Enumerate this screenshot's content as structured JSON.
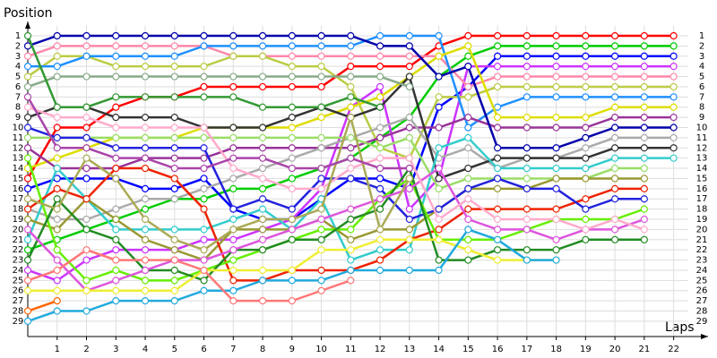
{
  "chart_data": {
    "type": "line",
    "y_label": "Position",
    "x_label": "Laps",
    "x": [
      0,
      1,
      2,
      3,
      4,
      5,
      6,
      7,
      8,
      9,
      10,
      11,
      12,
      13,
      14,
      15,
      16,
      17,
      18,
      19,
      20,
      21,
      22
    ],
    "xlim": [
      0,
      22.5
    ],
    "xticks": [
      1,
      2,
      3,
      4,
      5,
      6,
      7,
      8,
      9,
      10,
      11,
      12,
      13,
      14,
      15,
      16,
      17,
      18,
      19,
      20,
      21,
      22
    ],
    "ylim": [
      30.5,
      0
    ],
    "yticks": [
      1,
      2,
      3,
      4,
      5,
      6,
      7,
      8,
      9,
      10,
      11,
      12,
      13,
      14,
      15,
      16,
      17,
      18,
      19,
      20,
      21,
      22,
      23,
      24,
      25,
      26,
      27,
      28,
      29
    ],
    "grid": true,
    "series": [
      {
        "color": "#ff0000",
        "values": [
          15,
          10,
          10,
          8,
          7,
          7,
          6,
          6,
          6,
          6,
          6,
          4,
          4,
          4,
          2,
          1,
          1,
          1,
          1,
          1,
          1,
          1,
          1
        ]
      },
      {
        "color": "#00cc00",
        "values": [
          22,
          21,
          20,
          19,
          18,
          17,
          17,
          16,
          16,
          15,
          14,
          13,
          11,
          9,
          5,
          3,
          2,
          2,
          2,
          2,
          2,
          2,
          2
        ]
      },
      {
        "color": "#0000ff",
        "values": [
          16,
          15,
          15,
          15,
          16,
          16,
          15,
          18,
          19,
          19,
          17,
          15,
          15,
          16,
          8,
          6,
          3,
          3,
          3,
          3,
          3,
          3,
          3
        ]
      },
      {
        "color": "#cc33ff",
        "values": [
          24,
          25,
          23,
          22,
          22,
          22,
          21,
          21,
          20,
          19,
          16,
          8,
          6,
          18,
          15,
          4,
          4,
          4,
          4,
          4,
          4,
          4,
          4
        ]
      },
      {
        "color": "#ff88aa",
        "values": [
          3,
          2,
          2,
          2,
          2,
          2,
          2,
          3,
          3,
          3,
          3,
          3,
          3,
          3,
          3,
          6,
          5,
          5,
          5,
          5,
          5,
          5,
          5
        ]
      },
      {
        "color": "#bbcc44",
        "values": [
          5,
          3,
          3,
          4,
          4,
          4,
          4,
          3,
          3,
          4,
          4,
          6,
          12,
          13,
          7,
          7,
          6,
          6,
          6,
          6,
          6,
          6,
          6
        ]
      },
      {
        "color": "#1e90ff",
        "values": [
          4,
          4,
          3,
          3,
          3,
          3,
          2,
          2,
          2,
          2,
          2,
          2,
          1,
          1,
          1,
          10,
          8,
          7,
          7,
          7,
          7,
          7,
          7
        ]
      },
      {
        "color": "#dddd00",
        "values": [
          14,
          13,
          12,
          11,
          11,
          11,
          10,
          10,
          10,
          10,
          9,
          8,
          7,
          5,
          3,
          2,
          9,
          9,
          9,
          9,
          8,
          8,
          8
        ]
      },
      {
        "color": "#993399",
        "values": [
          12,
          14,
          14,
          14,
          13,
          13,
          13,
          12,
          12,
          12,
          12,
          12,
          11,
          10,
          10,
          9,
          10,
          10,
          10,
          10,
          9,
          9,
          9
        ]
      },
      {
        "color": "#0000aa",
        "values": [
          2,
          1,
          1,
          1,
          1,
          1,
          1,
          1,
          1,
          1,
          1,
          1,
          2,
          2,
          5,
          4,
          12,
          12,
          12,
          11,
          10,
          10,
          10
        ]
      },
      {
        "color": "#aaaaaa",
        "values": [
          18,
          19,
          19,
          18,
          17,
          17,
          16,
          15,
          14,
          13,
          12,
          11,
          10,
          9,
          13,
          12,
          14,
          13,
          13,
          12,
          11,
          11,
          11
        ]
      },
      {
        "color": "#333333",
        "values": [
          9,
          8,
          8,
          9,
          9,
          9,
          10,
          10,
          10,
          9,
          8,
          9,
          8,
          5,
          15,
          14,
          13,
          13,
          13,
          13,
          12,
          12,
          12
        ]
      },
      {
        "color": "#33cccc",
        "values": [
          21,
          14,
          17,
          20,
          20,
          20,
          20,
          19,
          18,
          20,
          17,
          23,
          22,
          22,
          12,
          11,
          14,
          14,
          14,
          14,
          13,
          13,
          13
        ]
      },
      {
        "color": "#99dd66",
        "values": [
          11,
          11,
          11,
          11,
          11,
          11,
          11,
          11,
          11,
          11,
          11,
          11,
          12,
          11,
          16,
          15,
          15,
          15,
          15,
          15,
          14,
          14,
          null
        ]
      },
      {
        "color": "#999933",
        "values": [
          19,
          20,
          17,
          19,
          21,
          22,
          23,
          20,
          20,
          20,
          19,
          21,
          20,
          20,
          18,
          16,
          16,
          16,
          15,
          15,
          15,
          15,
          null
        ]
      },
      {
        "color": "#ee2200",
        "values": [
          18,
          16,
          17,
          14,
          14,
          15,
          18,
          25,
          25,
          24,
          24,
          24,
          23,
          21,
          20,
          18,
          18,
          18,
          18,
          17,
          16,
          16,
          null
        ]
      },
      {
        "color": "#2222dd",
        "values": [
          10,
          11,
          11,
          12,
          12,
          12,
          12,
          18,
          17,
          18,
          15,
          15,
          16,
          19,
          18,
          16,
          15,
          16,
          16,
          18,
          17,
          17,
          null
        ]
      },
      {
        "color": "#66ee00",
        "values": [
          13,
          22,
          25,
          24,
          25,
          25,
          24,
          23,
          22,
          21,
          20,
          20,
          17,
          15,
          21,
          21,
          21,
          20,
          19,
          19,
          19,
          18,
          null
        ]
      },
      {
        "color": "#228b22",
        "values": [
          23,
          17,
          20,
          21,
          24,
          24,
          25,
          22,
          22,
          21,
          21,
          19,
          18,
          14,
          23,
          23,
          22,
          22,
          22,
          21,
          21,
          21,
          null
        ]
      },
      {
        "color": "#dd55dd",
        "values": [
          20,
          23,
          26,
          25,
          24,
          23,
          23,
          22,
          21,
          20,
          19,
          18,
          17,
          16,
          14,
          19,
          20,
          20,
          21,
          20,
          20,
          19,
          null
        ]
      },
      {
        "color": "#ffaacc",
        "values": [
          8,
          9,
          9,
          10,
          10,
          10,
          10,
          14,
          15,
          16,
          16,
          14,
          13,
          13,
          19,
          17,
          19,
          19,
          19,
          20,
          19,
          20,
          null
        ]
      },
      {
        "color": "#eeee33",
        "values": [
          26,
          26,
          26,
          26,
          26,
          26,
          24,
          24,
          24,
          24,
          22,
          22,
          21,
          21,
          21,
          22,
          23,
          23,
          23,
          null,
          null,
          null,
          null
        ]
      },
      {
        "color": "#22aadd",
        "values": [
          29,
          28,
          28,
          27,
          27,
          27,
          26,
          26,
          25,
          25,
          25,
          24,
          24,
          24,
          24,
          20,
          21,
          23,
          23,
          null,
          null,
          null,
          null
        ]
      },
      {
        "color": "#aaaa55",
        "values": [
          17,
          18,
          13,
          15,
          19,
          21,
          22,
          20,
          19,
          19,
          18,
          9,
          20,
          15,
          null,
          null,
          null,
          null,
          null,
          null,
          null,
          null,
          null
        ]
      },
      {
        "color": "#aa44aa",
        "values": [
          7,
          12,
          12,
          13,
          13,
          14,
          14,
          13,
          13,
          14,
          14,
          13,
          14,
          14,
          null,
          null,
          null,
          null,
          null,
          null,
          null,
          null,
          null
        ]
      },
      {
        "color": "#ff6600",
        "values": [
          28,
          27,
          null,
          null,
          null,
          null,
          null,
          null,
          null,
          null,
          null,
          null,
          null,
          null,
          null,
          null,
          null,
          null,
          null,
          null,
          null,
          null,
          null
        ]
      },
      {
        "color": "#88aa88",
        "values": [
          6,
          5,
          5,
          5,
          5,
          5,
          5,
          5,
          5,
          5,
          5,
          5,
          5,
          6,
          null,
          null,
          null,
          null,
          null,
          null,
          null,
          null,
          null
        ]
      },
      {
        "color": "#339933",
        "values": [
          1,
          8,
          8,
          7,
          7,
          7,
          7,
          7,
          8,
          8,
          8,
          7,
          8,
          null,
          null,
          null,
          null,
          null,
          null,
          null,
          null,
          null,
          null
        ]
      },
      {
        "color": "#ff7777",
        "values": [
          25,
          24,
          22,
          23,
          23,
          23,
          24,
          27,
          27,
          27,
          26,
          25,
          null,
          null,
          null,
          null,
          null,
          null,
          null,
          null,
          null,
          null,
          null
        ]
      }
    ]
  }
}
